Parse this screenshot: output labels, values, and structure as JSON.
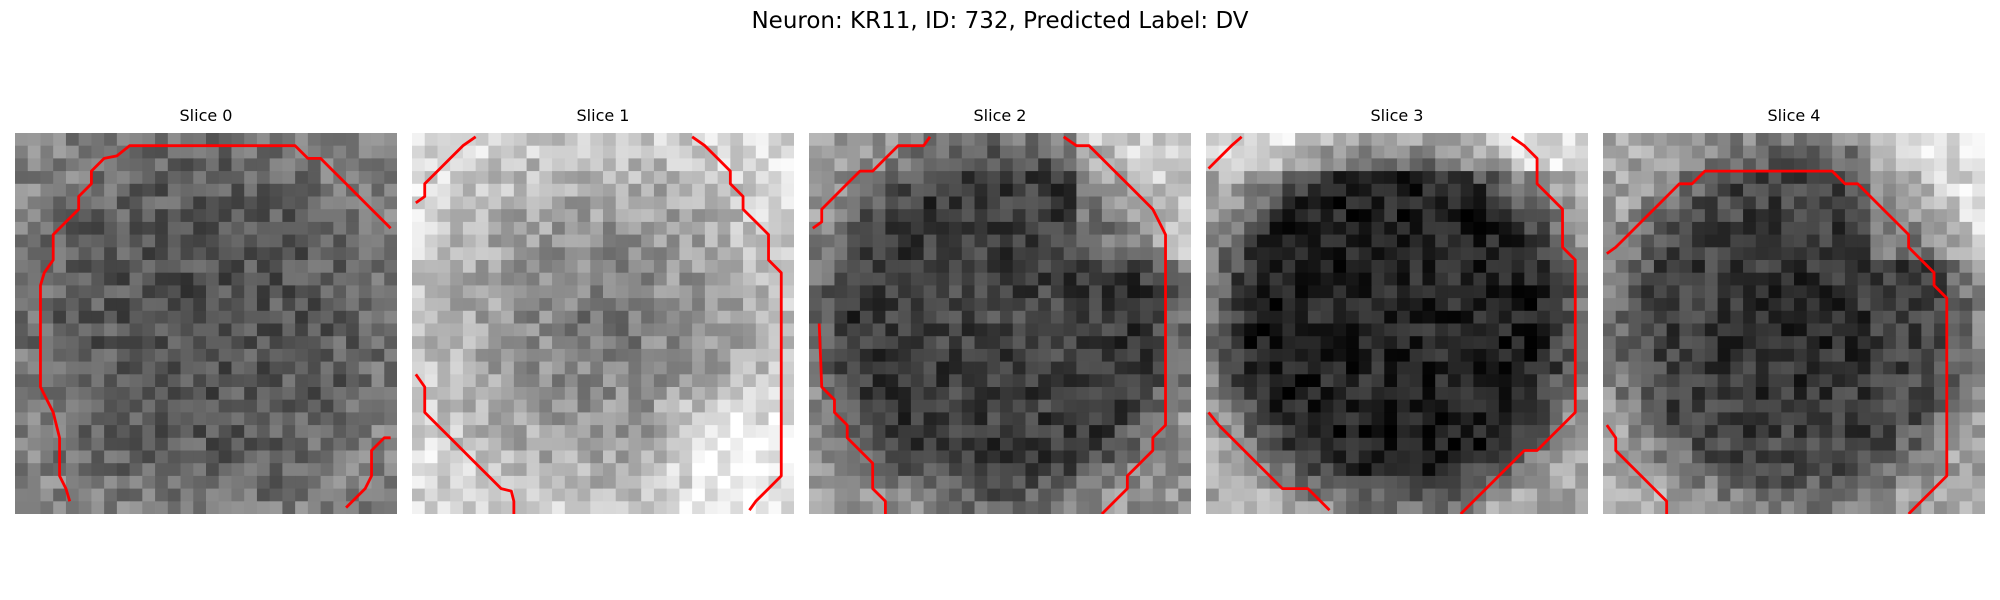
{
  "figure": {
    "title": "Neuron: KR11, ID: 732, Predicted Label: DV",
    "colormap": "gray",
    "contour_color": "#ff0000",
    "panels": [
      {
        "title": "Slice 0",
        "base_tone": 95,
        "center_tone": 75,
        "ring_tone": 130,
        "bright_corner": "none"
      },
      {
        "title": "Slice 1",
        "base_tone": 175,
        "center_tone": 110,
        "ring_tone": 215,
        "bright_corner": "bottom-right"
      },
      {
        "title": "Slice 2",
        "base_tone": 55,
        "center_tone": 70,
        "ring_tone": 150,
        "bright_corner": "top-right"
      },
      {
        "title": "Slice 3",
        "base_tone": 30,
        "center_tone": 40,
        "ring_tone": 170,
        "bright_corner": "top"
      },
      {
        "title": "Slice 4",
        "base_tone": 70,
        "center_tone": 35,
        "ring_tone": 165,
        "bright_corner": "top-right"
      }
    ]
  }
}
